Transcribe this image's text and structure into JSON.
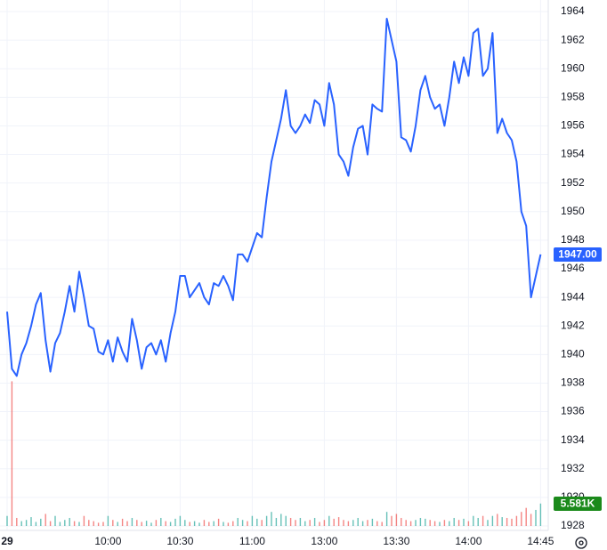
{
  "chart_data": {
    "type": "line",
    "categories": [
      "29",
      null,
      null,
      null,
      null,
      null,
      null,
      null,
      null,
      null,
      null,
      null,
      null,
      null,
      null,
      null,
      null,
      null,
      null,
      null,
      null,
      "10:00",
      null,
      null,
      null,
      null,
      null,
      null,
      null,
      null,
      null,
      null,
      null,
      null,
      null,
      null,
      "10:30",
      null,
      null,
      null,
      null,
      null,
      null,
      null,
      null,
      null,
      null,
      null,
      null,
      null,
      null,
      "11:00",
      null,
      null,
      null,
      null,
      null,
      null,
      null,
      null,
      null,
      null,
      null,
      null,
      null,
      null,
      "13:00",
      null,
      null,
      null,
      null,
      null,
      null,
      null,
      null,
      null,
      null,
      null,
      null,
      null,
      null,
      "13:30",
      null,
      null,
      null,
      null,
      null,
      null,
      null,
      null,
      null,
      null,
      null,
      null,
      null,
      null,
      "14:00",
      null,
      null,
      null,
      null,
      null,
      null,
      null,
      null,
      null,
      null,
      null,
      null,
      null,
      null,
      "14:45"
    ],
    "series": [
      {
        "name": "Price",
        "color": "#2962ff",
        "values": [
          1943,
          1939,
          1938.5,
          1940,
          1940.8,
          1942,
          1943.5,
          1944.3,
          1941,
          1938.8,
          1940.8,
          1941.5,
          1943,
          1944.8,
          1943,
          1945.8,
          1944,
          1942,
          1941.8,
          1940.2,
          1940,
          1941,
          1939.5,
          1941.2,
          1940.2,
          1939.5,
          1942.5,
          1941,
          1939,
          1940.5,
          1940.8,
          1940,
          1941,
          1939.5,
          1941.5,
          1943,
          1945.5,
          1945.5,
          1944,
          1944.5,
          1945,
          1944,
          1943.5,
          1945,
          1944.8,
          1945.5,
          1944.8,
          1943.8,
          1947,
          1947,
          1946.5,
          1947.5,
          1948.5,
          1948.2,
          1951,
          1953.5,
          1955,
          1956.5,
          1958.5,
          1956,
          1955.5,
          1956,
          1956.8,
          1956.2,
          1957.8,
          1957.5,
          1956,
          1959,
          1957.5,
          1954,
          1953.5,
          1952.5,
          1954.5,
          1955.8,
          1956,
          1954,
          1957.5,
          1957.2,
          1957,
          1963.5,
          1962,
          1960.5,
          1955.2,
          1955,
          1954.2,
          1956,
          1958.5,
          1959.5,
          1958,
          1957.2,
          1957.5,
          1956,
          1958,
          1960.5,
          1959,
          1960.8,
          1959.5,
          1962.5,
          1962.8,
          1959.5,
          1960,
          1962.5,
          1955.5,
          1956.5,
          1955.5,
          1955,
          1953.5,
          1950,
          1949,
          1944,
          1945.5,
          1947
        ]
      },
      {
        "name": "Volume",
        "axis": "y2",
        "values": [
          2.5,
          36,
          2,
          1.2,
          1.5,
          2.2,
          1,
          1.8,
          3,
          1.2,
          2.5,
          1,
          1.5,
          2,
          1.2,
          1,
          2.5,
          1.5,
          1.2,
          0.8,
          1,
          2.5,
          1.5,
          1,
          1.8,
          1.2,
          2,
          1.5,
          1,
          1.3,
          0.8,
          1.5,
          2,
          1.2,
          1,
          1.8,
          2.5,
          1.5,
          1,
          1.2,
          0.8,
          1.5,
          1,
          1.2,
          1.8,
          1,
          0.8,
          1.2,
          2,
          1.5,
          1.2,
          2.5,
          1.8,
          1.5,
          2.5,
          3.5,
          2,
          3,
          2.5,
          2,
          1.5,
          2,
          1.2,
          1.5,
          2,
          1,
          1.5,
          2.5,
          1.8,
          2.2,
          1.5,
          1.2,
          1.5,
          2,
          1.2,
          1.5,
          1.8,
          1.2,
          1,
          3.5,
          2.5,
          3,
          2,
          1.5,
          1.2,
          1.5,
          2,
          1.8,
          1.5,
          1.2,
          1,
          1.5,
          1.2,
          2,
          1.5,
          1.8,
          1.2,
          2.5,
          2,
          2.5,
          1.5,
          2.5,
          3,
          2.2,
          2,
          1.8,
          2.5,
          3.5,
          4.5,
          3,
          4,
          5.581
        ]
      }
    ],
    "up_color": "#26a69a",
    "down_color": "#ef5350",
    "ylim": [
      1927.9,
      1964.7
    ],
    "yticks": [
      1928,
      1930,
      1932,
      1934,
      1936,
      1938,
      1940,
      1942,
      1944,
      1946,
      1948,
      1950,
      1952,
      1954,
      1956,
      1958,
      1960,
      1962,
      1964
    ],
    "y2lim": [
      0,
      128
    ],
    "grid": true,
    "current_price": {
      "value": 1947,
      "label": "1947.00"
    },
    "current_volume": {
      "value": 5.581,
      "label": "5.581K"
    }
  }
}
